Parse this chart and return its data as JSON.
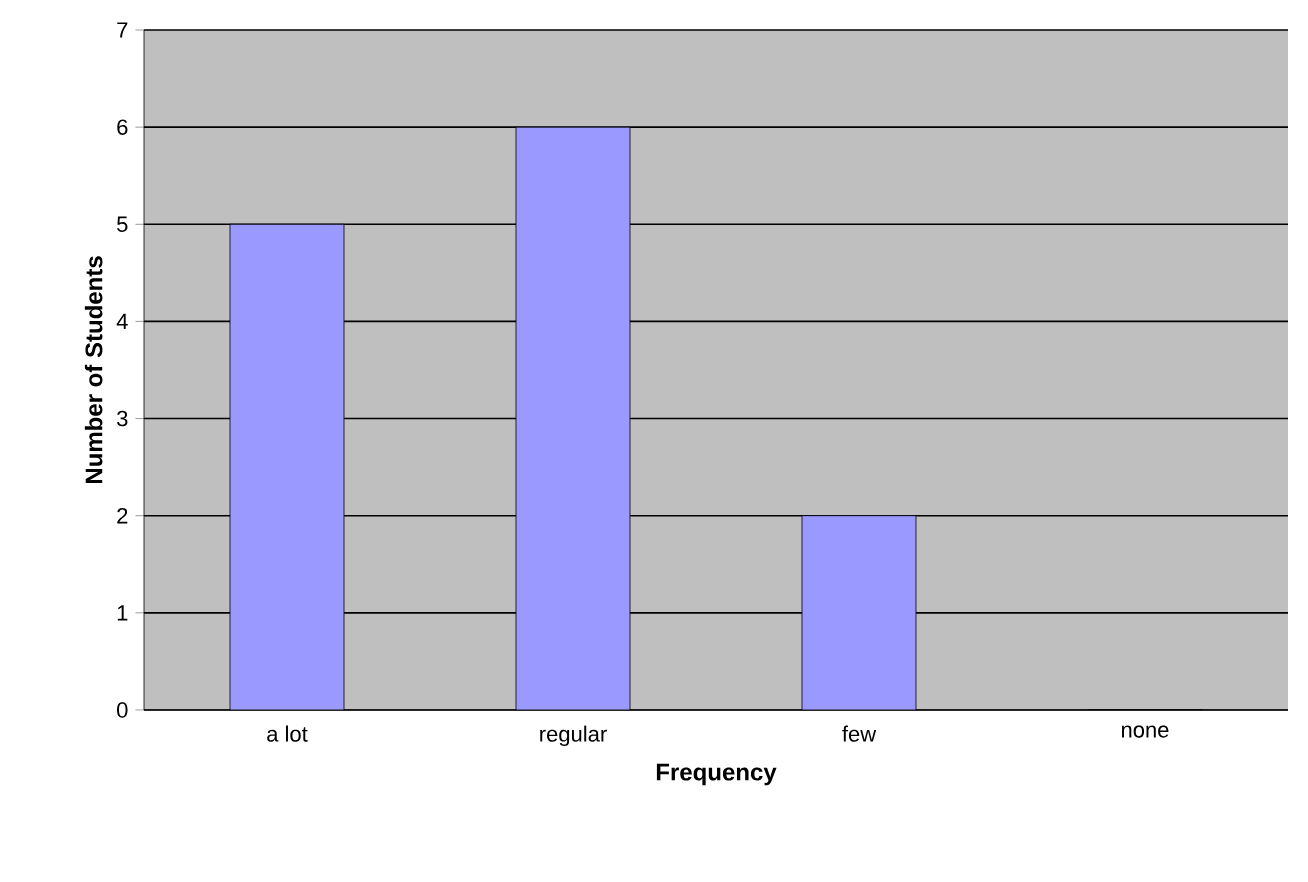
{
  "chart_data": {
    "type": "bar",
    "xlabel": "Frequency",
    "ylabel": "Number of Students",
    "categories": [
      "a lot",
      "regular",
      "few",
      "none"
    ],
    "values": [
      5,
      6,
      2,
      0
    ],
    "color": "#9999ff",
    "ylim": [
      0,
      7
    ],
    "yticks": [
      0,
      1,
      2,
      3,
      4,
      5,
      6,
      7
    ],
    "grid": "y"
  }
}
